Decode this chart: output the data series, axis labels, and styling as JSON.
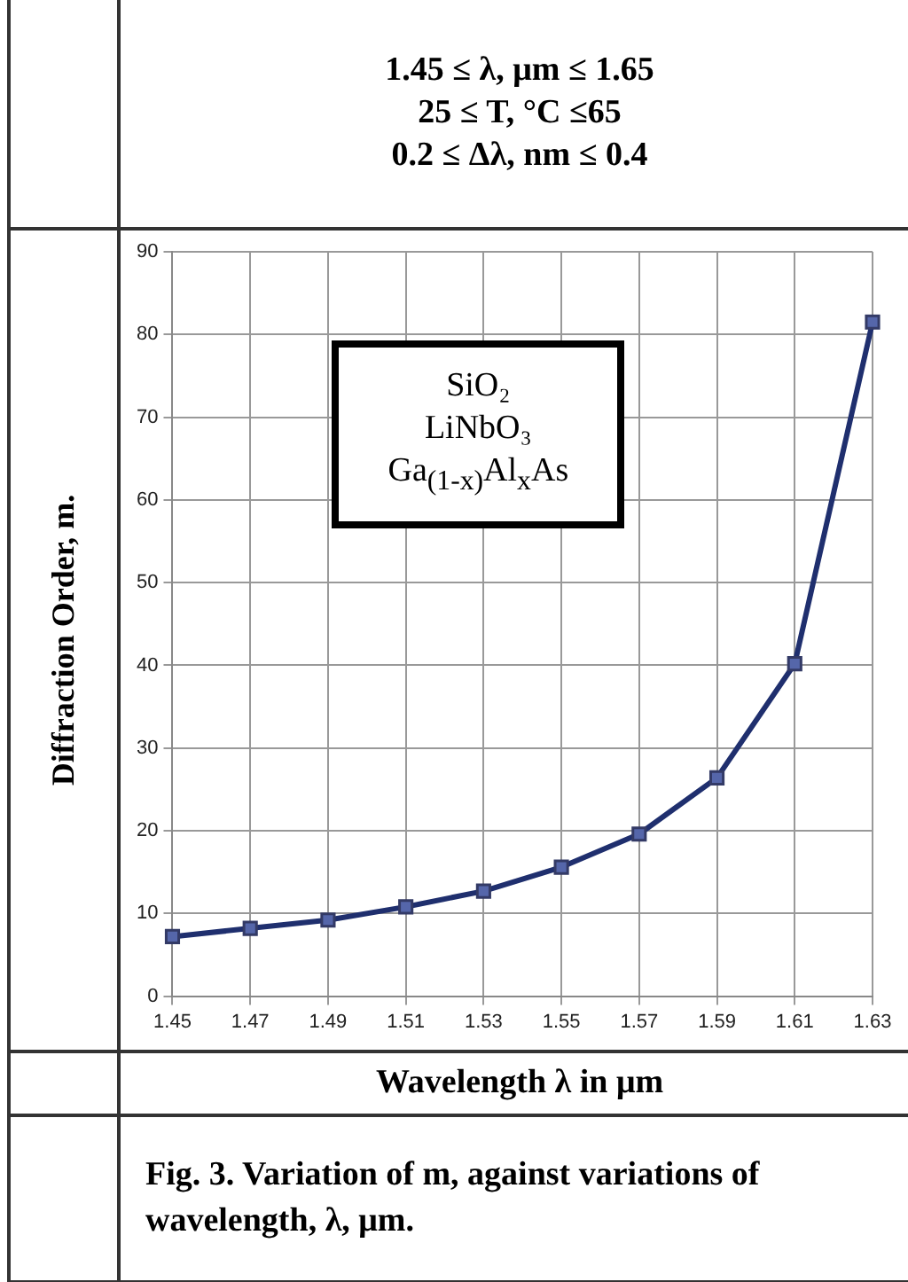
{
  "chart_data": {
    "type": "line",
    "title": "Fig. 3. Variation of m, against variations of wavelength, λ, μm.",
    "subtitle": "1.45 ≤ λ, μm ≤ 1.65\n25 ≤ T, °C  ≤65\n0.2 ≤ Δλ, nm ≤ 0.4",
    "xlabel": "Wavelength λ in μm",
    "ylabel": "Diffraction Order, m.",
    "annotations": [
      "SiO₂",
      "LiNbO₃",
      "Ga$_{(1-x)}$Al$_{x}$As"
    ],
    "categories": [
      "1.45",
      "1.47",
      "1.49",
      "1.51",
      "1.53",
      "1.55",
      "1.57",
      "1.59",
      "1.61",
      "1.63"
    ],
    "series": [
      {
        "color": "#1f2f6e",
        "values": [
          7.2,
          8.2,
          9.2,
          10.8,
          12.7,
          15.6,
          19.6,
          26.4,
          40.2,
          81.5
        ]
      }
    ],
    "ylim": [
      0,
      90
    ],
    "yticks": [
      0,
      10,
      20,
      30,
      40,
      50,
      60,
      70,
      80,
      90
    ],
    "grid": true,
    "legend": false,
    "marker": "square",
    "line_style": "solid"
  }
}
